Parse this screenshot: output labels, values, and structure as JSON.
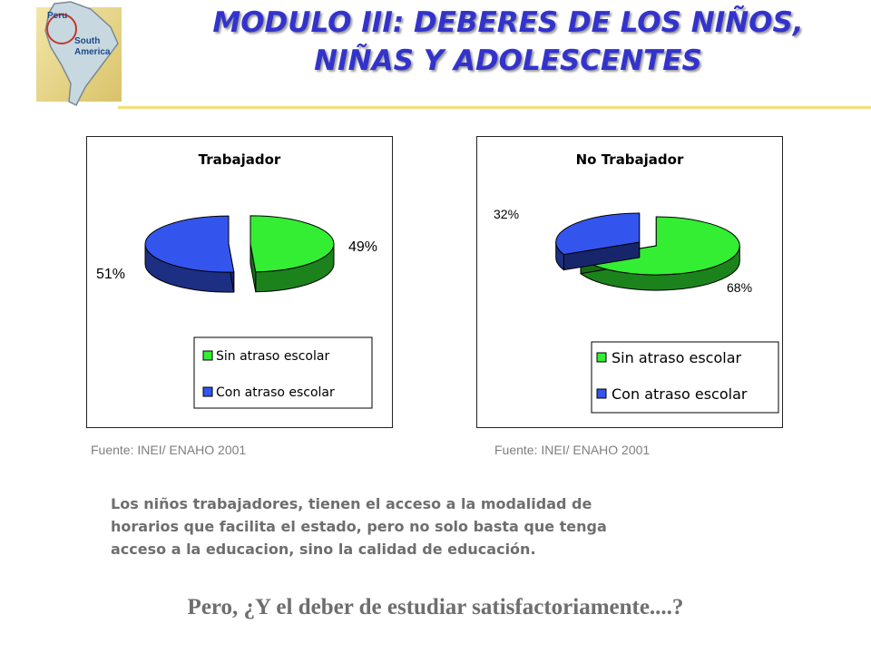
{
  "header": {
    "title_line1": "MODULO III: DEBERES DE LOS NIÑOS,",
    "title_line2": "NIÑAS Y ADOLESCENTES",
    "logo": {
      "icon": "south-america-map-icon",
      "line1": "Peru",
      "line2": "South",
      "line3": "America"
    }
  },
  "chart_data": [
    {
      "type": "pie",
      "title": "Trabajador",
      "slices": [
        {
          "label": "Sin atraso escolar",
          "value": 49,
          "value_label": "49%",
          "color": "#33ee33"
        },
        {
          "label": "Con atraso escolar",
          "value": 51,
          "value_label": "51%",
          "color": "#3355ee"
        }
      ],
      "legend": {
        "position": "bottom-right"
      }
    },
    {
      "type": "pie",
      "title": "No Trabajador",
      "slices": [
        {
          "label": "Sin atraso escolar",
          "value": 68,
          "value_label": "68%",
          "color": "#33ee33"
        },
        {
          "label": "Con atraso escolar",
          "value": 32,
          "value_label": "32%",
          "color": "#3355ee"
        }
      ],
      "legend": {
        "position": "bottom-right"
      }
    }
  ],
  "sources": {
    "left": "Fuente: INEI/ ENAHO 2001",
    "right": "Fuente: INEI/ ENAHO 2001"
  },
  "note": {
    "line1": "Los niños trabajadores, tienen el acceso a la modalidad de",
    "line2": "horarios que facilita el estado, pero no solo basta que tenga",
    "line3": "acceso a la educacion, sino la calidad de educación."
  },
  "question": "Pero, ¿Y el deber de estudiar satisfactoriamente....?"
}
